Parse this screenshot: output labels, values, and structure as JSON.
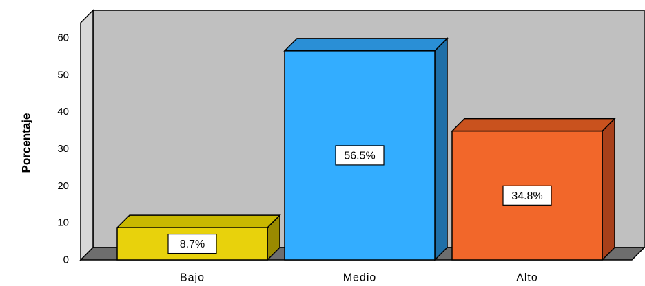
{
  "chart_data": {
    "type": "bar",
    "categories": [
      "Bajo",
      "Medio",
      "Alto"
    ],
    "values": [
      8.7,
      56.5,
      34.8
    ],
    "data_labels": [
      "8.7%",
      "56.5%",
      "34.8%"
    ],
    "colors": [
      "#e8d20c",
      "#33adff",
      "#f2672a"
    ],
    "side_colors": [
      "#9a8a00",
      "#1e6fa8",
      "#a8401a"
    ],
    "top_colors": [
      "#c9b800",
      "#2a8fd6",
      "#c9521e"
    ],
    "title": "",
    "xlabel": "",
    "ylabel": "Porcentaje",
    "ylim": [
      0,
      60
    ],
    "yticks": [
      "0",
      "10",
      "20",
      "30",
      "40",
      "50",
      "60"
    ],
    "plot_background": "#c0c0c0",
    "three_d": true,
    "grid": false,
    "legend": false
  }
}
